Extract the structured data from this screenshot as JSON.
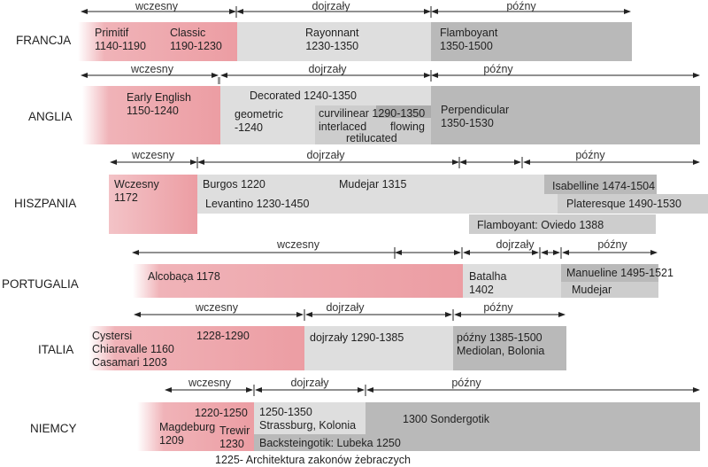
{
  "phases": {
    "early": "wczesny",
    "mature": "dojrzały",
    "late": "późny"
  },
  "countries": {
    "francja": {
      "name": "FRANCJA",
      "blocks": {
        "primitif": [
          "Primitif",
          "1140-1190"
        ],
        "classic": [
          "Classic",
          "1190-1230"
        ],
        "rayonnant": [
          "Rayonnant",
          "1230-1350"
        ],
        "flamboyant": [
          "Flamboyant",
          "1350-1500"
        ]
      }
    },
    "anglia": {
      "name": "ANGLIA",
      "blocks": {
        "early_english": [
          "Early English",
          "1150-1240"
        ],
        "decorated": "Decorated 1240-1350",
        "geometric": [
          "geometric",
          "-1240"
        ],
        "curvilinear": "curvilinear 1290-1350",
        "interlaced": "interlaced",
        "flowing": "flowing",
        "reticulated": "retilucated",
        "perpendicular": [
          "Perpendicular",
          "1350-1530"
        ]
      }
    },
    "hiszpania": {
      "name": "HISZPANIA",
      "blocks": {
        "wczesny": [
          "Wczesny",
          "1172"
        ],
        "burgos": "Burgos 1220",
        "mudejar": "Mudejar 1315",
        "isabelline": "Isabelline 1474-1504",
        "levantino": "Levantino 1230-1450",
        "plateresque": "Plateresque 1490-1530",
        "flamboyant": "Flamboyant: Oviedo 1388"
      }
    },
    "portugalia": {
      "name": "PORTUGALIA",
      "blocks": {
        "alcobaca": "Alcobaça 1178",
        "batalha": [
          "Batalha",
          "1402"
        ],
        "manueline": "Manueline 1495-1521",
        "mudejar": "Mudejar"
      }
    },
    "italia": {
      "name": "ITALIA",
      "blocks": {
        "cystersi": [
          "Cystersi",
          "Chiaravalle 1160",
          "Casamari 1203"
        ],
        "early_years": "1228-1290",
        "dojrzaly": "dojrzały 1290-1385",
        "pozny": [
          "późny 1385-1500",
          "Mediolan, Bolonia"
        ]
      }
    },
    "niemcy": {
      "name": "NIEMCY",
      "blocks": {
        "years_1220": "1220-1250",
        "magdeburg": [
          "Magdeburg",
          "1209"
        ],
        "trewir": [
          "Trewir",
          "1230"
        ],
        "strassburg": [
          "1250-1350",
          "Strassburg, Kolonia"
        ],
        "sondergotik": "1300 Sondergotik",
        "backsteingotik": "Backsteingotik: Lubeka 1250"
      }
    }
  },
  "footnote": "1225- Architektura zakonów żebraczych"
}
